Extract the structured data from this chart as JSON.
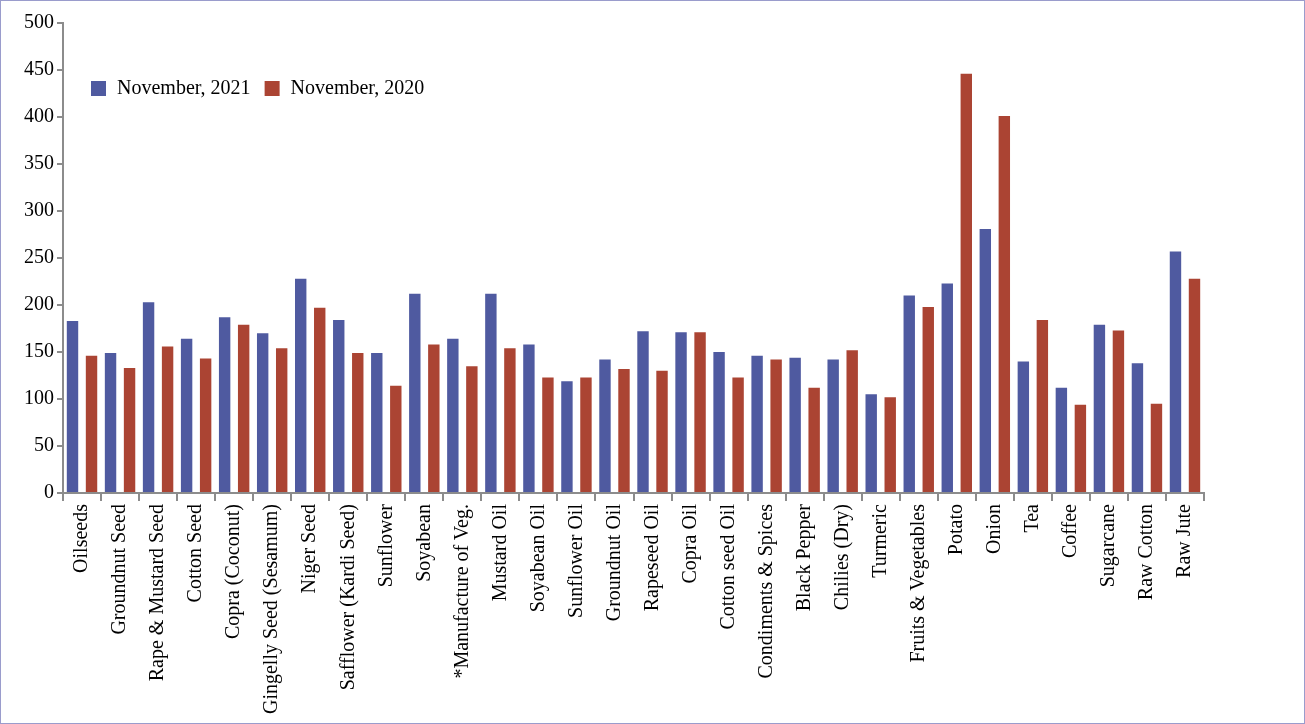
{
  "chart_data": {
    "type": "bar",
    "categories": [
      "Oilseeds",
      "Groundnut Seed",
      "Rape & Mustard Seed",
      "Cotton Seed",
      "Copra (Coconut)",
      "Gingelly Seed (Sesamum)",
      "Niger Seed",
      "Safflower (Kardi Seed)",
      "Sunflower",
      "Soyabean",
      "*Manufacture of Veg.",
      "Mustard Oil",
      "Soyabean Oil",
      "Sunflower Oil",
      "Groundnut Oil",
      "Rapeseed Oil",
      "Copra Oil",
      "Cotton seed Oil",
      "Condiments & Spices",
      "Black Pepper",
      "Chilies (Dry)",
      "Turmeric",
      "Fruits & Vegetables",
      "Potato",
      "Onion",
      "Tea",
      "Coffee",
      "Sugarcane",
      "Raw Cotton",
      "Raw Jute"
    ],
    "series": [
      {
        "name": "November, 2021",
        "color": "#4f5aa0",
        "values": [
          183,
          149,
          203,
          164,
          187,
          170,
          228,
          184,
          149,
          212,
          164,
          212,
          158,
          119,
          142,
          172,
          171,
          150,
          146,
          144,
          142,
          105,
          210,
          223,
          281,
          140,
          112,
          179,
          138,
          257
        ]
      },
      {
        "name": "November, 2020",
        "color": "#ab4433",
        "values": [
          146,
          133,
          156,
          143,
          179,
          154,
          197,
          149,
          114,
          158,
          135,
          154,
          123,
          123,
          132,
          130,
          171,
          123,
          142,
          112,
          152,
          102,
          198,
          446,
          401,
          184,
          94,
          173,
          95,
          228
        ]
      }
    ],
    "ylim": [
      0,
      500
    ],
    "yticks": [
      0,
      50,
      100,
      150,
      200,
      250,
      300,
      350,
      400,
      450,
      500
    ],
    "grid": false,
    "legend": "top left"
  }
}
